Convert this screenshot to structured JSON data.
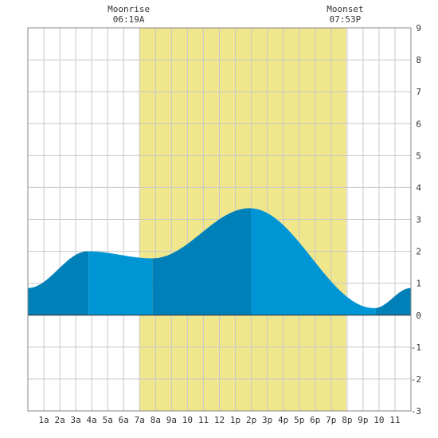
{
  "chart_data": {
    "type": "area",
    "x_tick_labels": [
      "1a",
      "2a",
      "3a",
      "4a",
      "5a",
      "6a",
      "7a",
      "8a",
      "9a",
      "10",
      "11",
      "12",
      "1p",
      "2p",
      "3p",
      "4p",
      "5p",
      "6p",
      "7p",
      "8p",
      "9p",
      "10",
      "11"
    ],
    "xlim": [
      0,
      24
    ],
    "ylim": [
      -3,
      9
    ],
    "y_ticks": [
      9,
      8,
      7,
      6,
      5,
      4,
      3,
      2,
      1,
      0,
      -1,
      -2,
      -3
    ],
    "y_axis_side": "right",
    "grid": true,
    "daylight_band": {
      "start": 7.0,
      "end": 19.95,
      "color": "#f0e68c"
    },
    "annotations": [
      {
        "title": "Moonrise",
        "time": "06:19A",
        "x": 6.32
      },
      {
        "title": "Moonset",
        "time": "07:53P",
        "x": 19.88
      }
    ],
    "extremes": [
      {
        "x": 0.0,
        "y": 0.85
      },
      {
        "x": 3.75,
        "y": 2.0
      },
      {
        "x": 7.8,
        "y": 1.78
      },
      {
        "x": 13.9,
        "y": 3.35
      },
      {
        "x": 21.7,
        "y": 0.22
      },
      {
        "x": 24.0,
        "y": 0.85
      }
    ],
    "segment_boundaries": [
      3.8,
      7.8,
      14.0,
      21.8
    ],
    "colors": {
      "fill_light": "#0096d6",
      "fill_dark": "#0080b8",
      "grid": "#c8c8c8",
      "frame": "#888888"
    }
  }
}
